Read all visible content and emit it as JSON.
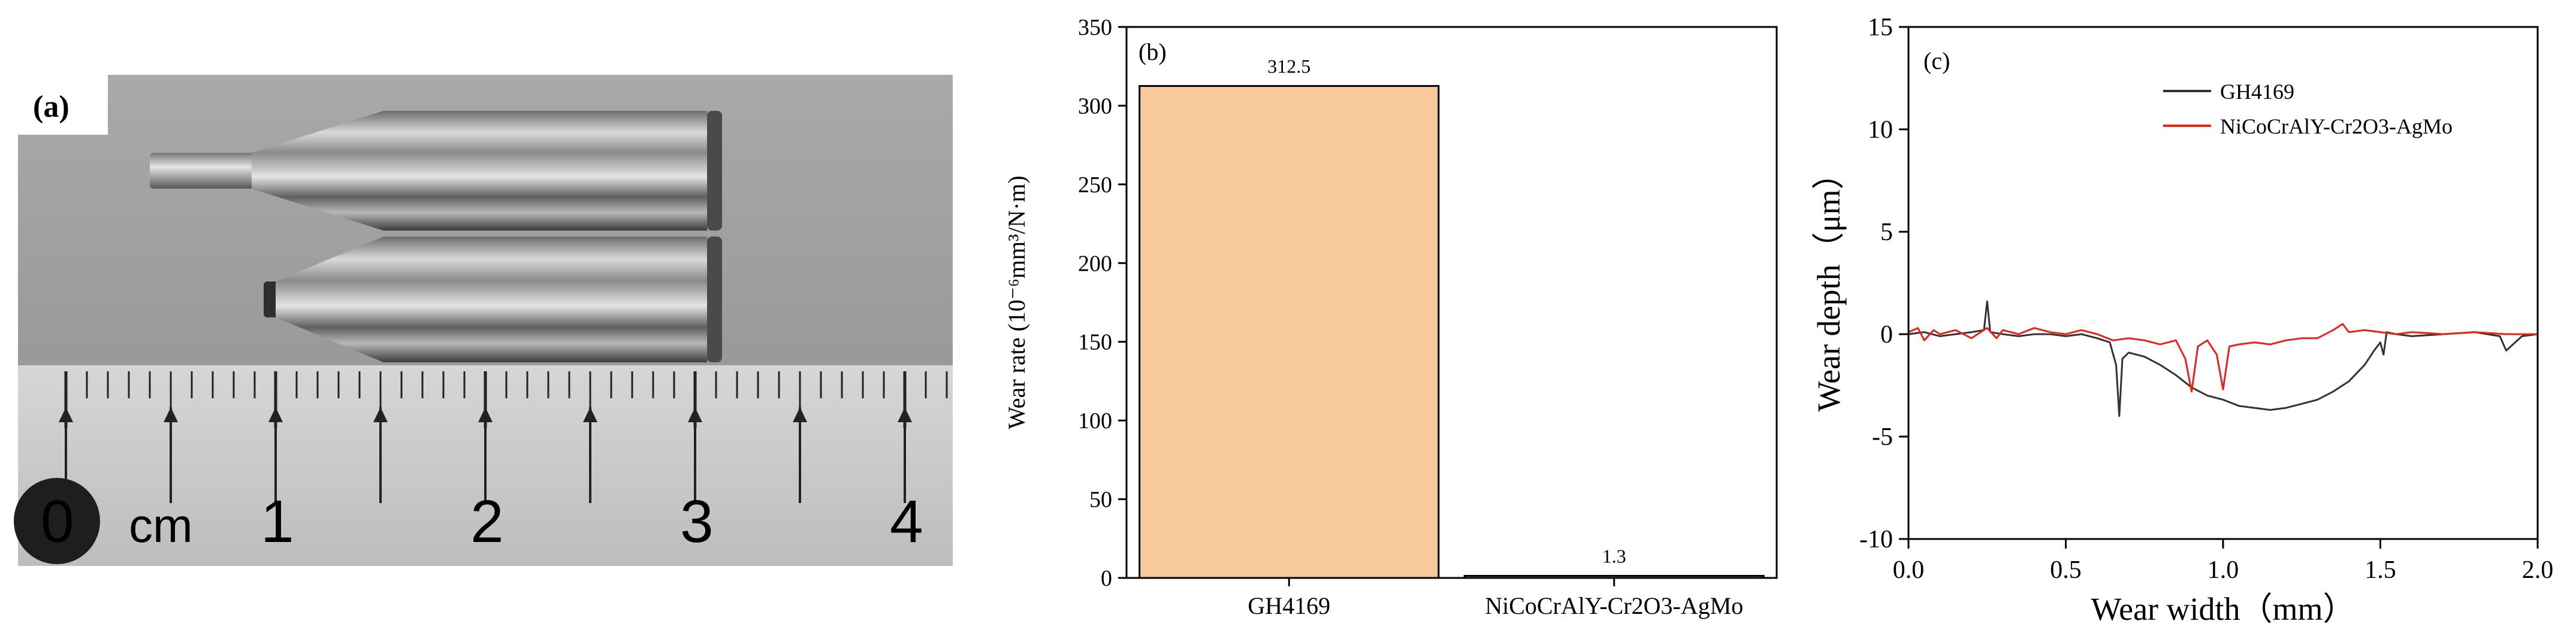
{
  "panel_a": {
    "label": "(a)",
    "ruler": {
      "unit": "cm",
      "numbers": [
        "0",
        "1",
        "2",
        "3",
        "4"
      ]
    }
  },
  "chart_data": [
    {
      "type": "bar",
      "panel_label": "(b)",
      "categories": [
        "GH4169",
        "NiCoCrAlY-Cr2O3-AgMo"
      ],
      "values": [
        312.5,
        1.3
      ],
      "value_labels": [
        "312.5",
        "1.3"
      ],
      "ylabel": "Wear rate (10⁻⁶mm³/N·m)",
      "ylim": [
        0,
        350
      ],
      "yticks": [
        0,
        50,
        100,
        150,
        200,
        250,
        300,
        350
      ],
      "bar_color": "#F8C99A",
      "grid": false
    },
    {
      "type": "line",
      "panel_label": "(c)",
      "xlabel": "Wear width（mm）",
      "ylabel": "Wear depth（μm）",
      "xlim": [
        0,
        2.0
      ],
      "ylim": [
        -10,
        15
      ],
      "xticks": [
        0.0,
        0.5,
        1.0,
        1.5,
        2.0
      ],
      "xtick_labels": [
        "0.0",
        "0.5",
        "1.0",
        "1.5",
        "2.0"
      ],
      "yticks": [
        -10,
        -5,
        0,
        5,
        10,
        15
      ],
      "legend_position": "top-left",
      "grid": false,
      "series": [
        {
          "name": "GH4169",
          "color": "#333333",
          "x": [
            0.0,
            0.05,
            0.1,
            0.15,
            0.2,
            0.24,
            0.25,
            0.26,
            0.3,
            0.35,
            0.4,
            0.45,
            0.5,
            0.55,
            0.6,
            0.64,
            0.66,
            0.67,
            0.68,
            0.7,
            0.75,
            0.8,
            0.85,
            0.9,
            0.95,
            1.0,
            1.05,
            1.1,
            1.15,
            1.2,
            1.25,
            1.3,
            1.35,
            1.4,
            1.45,
            1.48,
            1.5,
            1.51,
            1.52,
            1.55,
            1.6,
            1.7,
            1.8,
            1.88,
            1.9,
            1.95,
            2.0
          ],
          "y": [
            0.0,
            0.1,
            -0.1,
            0.0,
            0.1,
            0.2,
            1.6,
            0.1,
            0.0,
            -0.1,
            0.0,
            0.0,
            -0.1,
            0.0,
            -0.2,
            -0.4,
            -1.5,
            -4.0,
            -1.2,
            -0.9,
            -1.1,
            -1.5,
            -2.0,
            -2.6,
            -3.0,
            -3.2,
            -3.5,
            -3.6,
            -3.7,
            -3.6,
            -3.4,
            -3.2,
            -2.8,
            -2.3,
            -1.5,
            -0.8,
            -0.4,
            -1.0,
            0.1,
            0.0,
            -0.1,
            0.0,
            0.1,
            -0.1,
            -0.8,
            -0.1,
            0.0
          ]
        },
        {
          "name": "NiCoCrAlY-Cr2O3-AgMo",
          "color": "#E8231A",
          "x": [
            0.0,
            0.03,
            0.05,
            0.08,
            0.1,
            0.15,
            0.2,
            0.25,
            0.28,
            0.3,
            0.35,
            0.4,
            0.45,
            0.5,
            0.55,
            0.6,
            0.65,
            0.7,
            0.75,
            0.8,
            0.85,
            0.88,
            0.9,
            0.92,
            0.95,
            0.98,
            1.0,
            1.02,
            1.05,
            1.1,
            1.15,
            1.2,
            1.25,
            1.3,
            1.35,
            1.38,
            1.4,
            1.45,
            1.5,
            1.55,
            1.6,
            1.7,
            1.8,
            1.9,
            2.0
          ],
          "y": [
            0.1,
            0.3,
            -0.3,
            0.2,
            0.0,
            0.2,
            -0.2,
            0.3,
            -0.2,
            0.2,
            0.0,
            0.3,
            0.1,
            0.0,
            0.2,
            0.0,
            -0.3,
            -0.2,
            -0.3,
            -0.5,
            -0.3,
            -1.2,
            -2.8,
            -0.6,
            -0.3,
            -1.0,
            -2.7,
            -0.6,
            -0.5,
            -0.4,
            -0.5,
            -0.3,
            -0.2,
            -0.2,
            0.2,
            0.5,
            0.1,
            0.2,
            0.1,
            0.0,
            0.1,
            0.0,
            0.1,
            0.0,
            0.0
          ]
        }
      ]
    }
  ]
}
